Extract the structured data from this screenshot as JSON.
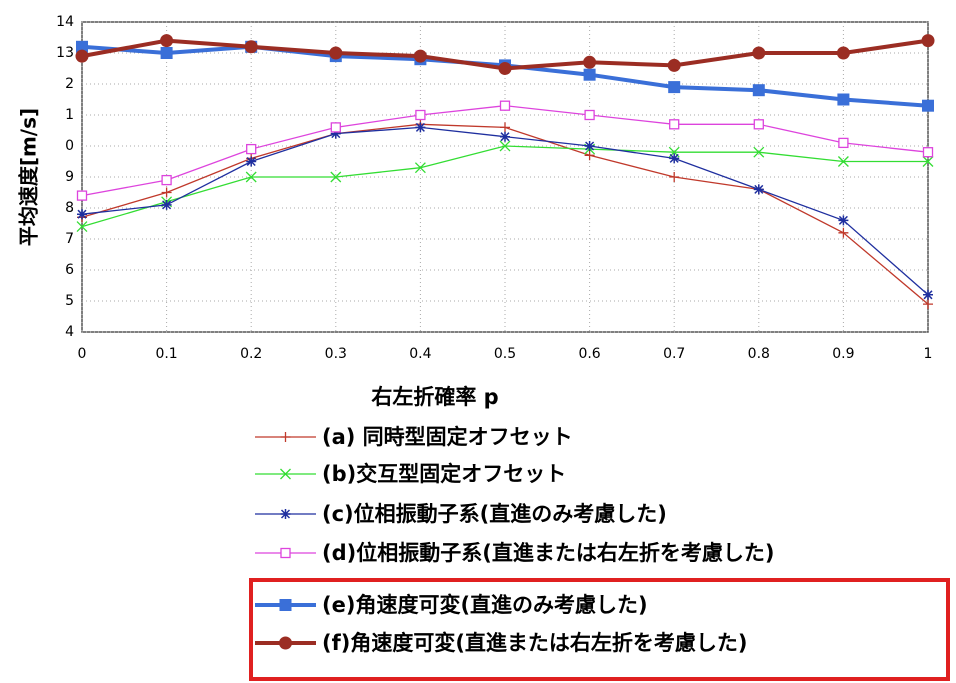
{
  "chart_data": {
    "type": "line",
    "ylabel": "平均速度[m/s]",
    "xlabel": "右左折確率 p",
    "x": [
      0,
      0.1,
      0.2,
      0.3,
      0.4,
      0.5,
      0.6,
      0.7,
      0.8,
      0.9,
      1
    ],
    "xlim": [
      0,
      1
    ],
    "xticks": [
      0,
      0.1,
      0.2,
      0.3,
      0.4,
      0.5,
      0.6,
      0.7,
      0.8,
      0.9,
      1
    ],
    "ylim": [
      4,
      14
    ],
    "yticks": [
      4,
      5,
      6,
      7,
      8,
      9,
      {
        "value": 10,
        "label": "0"
      },
      {
        "value": 11,
        "label": "1"
      },
      {
        "value": 12,
        "label": "2"
      },
      13,
      14
    ],
    "grid": true,
    "series": [
      {
        "name": "(a) 同時型固定オフセット",
        "color": "#c0392b",
        "marker": "plus",
        "line_width": 1.3,
        "values": [
          7.7,
          8.5,
          9.6,
          10.4,
          10.7,
          10.6,
          9.7,
          9.0,
          8.6,
          7.2,
          4.9
        ]
      },
      {
        "name": "(b)交互型固定オフセット",
        "color": "#33dd33",
        "marker": "cross",
        "line_width": 1.3,
        "values": [
          7.4,
          8.2,
          9.0,
          9.0,
          9.3,
          10.0,
          9.9,
          9.8,
          9.8,
          9.5,
          9.5
        ]
      },
      {
        "name": "(c)位相振動子系(直進のみ考慮した)",
        "color": "#1f2f9f",
        "marker": "star",
        "line_width": 1.3,
        "values": [
          7.8,
          8.1,
          9.5,
          10.4,
          10.6,
          10.3,
          10.0,
          9.6,
          8.6,
          7.6,
          5.2
        ]
      },
      {
        "name": "(d)位相振動子系(直進または右左折を考慮した)",
        "color": "#dd44dd",
        "marker": "square-open",
        "line_width": 1.3,
        "values": [
          8.4,
          8.9,
          9.9,
          10.6,
          11.0,
          11.3,
          11.0,
          10.7,
          10.7,
          10.1,
          9.8
        ]
      },
      {
        "name": "(e)角速度可変(直進のみ考慮した)",
        "color": "#3a6fd8",
        "marker": "square",
        "line_width": 4,
        "values": [
          13.2,
          13.0,
          13.2,
          12.9,
          12.8,
          12.6,
          12.3,
          11.9,
          11.8,
          11.5,
          11.3
        ]
      },
      {
        "name": "(f)角速度可変(直進または右左折を考慮した)",
        "color": "#9b2d23",
        "marker": "circle",
        "line_width": 4,
        "values": [
          12.9,
          13.4,
          13.2,
          13.0,
          12.9,
          12.5,
          12.7,
          12.6,
          13.0,
          13.0,
          13.4
        ]
      }
    ]
  }
}
